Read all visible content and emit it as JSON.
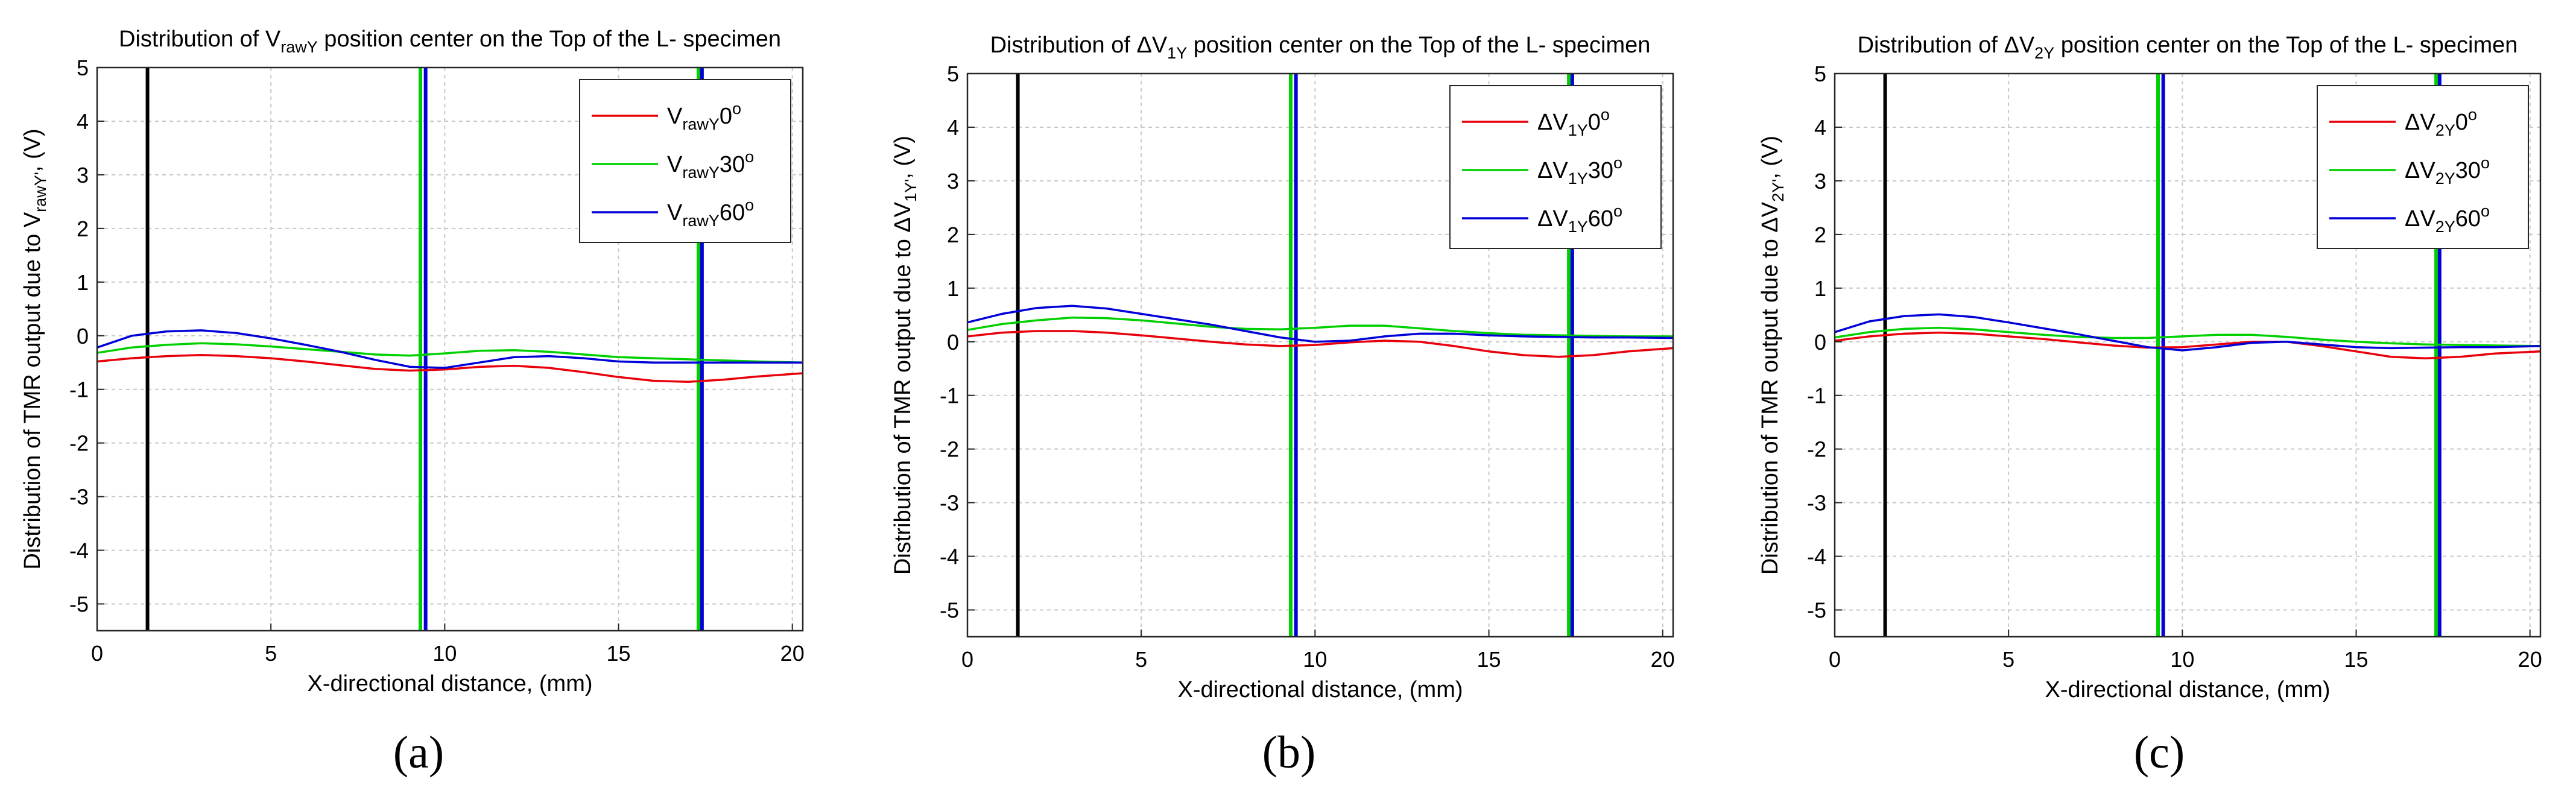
{
  "figure": {
    "panel_labels": [
      "(a)",
      "(b)",
      "(c)"
    ],
    "colors": {
      "red": "#e8000b",
      "green": "#00d000",
      "blue": "#0000d8",
      "black": "#000000",
      "grid": "#c8c8c8"
    }
  },
  "chart_data": [
    {
      "type": "line",
      "panel": "(a)",
      "title": {
        "prefix": "Distribution of V",
        "sub": "rawY",
        "suffix": " position center on the Top of the L- specimen"
      },
      "title_text": "Distribution of VrawY position center on the Top of the L- specimen",
      "xlabel": "X-directional distance, (mm)",
      "ylabel": {
        "prefix": "Distribution of TMR output due to V",
        "sub": "rawY'",
        "suffix": ", (V)"
      },
      "ylabel_text": "Distribution of TMR output due to VrawY', (V)",
      "xlim": [
        0,
        20.3
      ],
      "ylim": [
        -5.5,
        5
      ],
      "xticks": [
        0,
        5,
        10,
        15,
        20
      ],
      "yticks": [
        5,
        4,
        3,
        2,
        1,
        0,
        -1,
        -2,
        -3,
        -4,
        -5
      ],
      "grid": true,
      "legend_position": "top-right",
      "vlines": [
        {
          "x": 1.45,
          "color": "black"
        },
        {
          "x": 9.3,
          "color": "green"
        },
        {
          "x": 9.45,
          "color": "blue"
        },
        {
          "x": 17.3,
          "color": "green"
        },
        {
          "x": 17.4,
          "color": "blue"
        }
      ],
      "x": [
        0,
        1,
        2,
        3,
        4,
        5,
        6,
        7,
        8,
        9,
        10,
        11,
        12,
        13,
        14,
        15,
        16,
        17,
        18,
        19,
        20.3
      ],
      "series": [
        {
          "name": "VrawY0°",
          "label": {
            "base": "V",
            "sub": "rawY",
            "angle": "0",
            "sup": "o"
          },
          "color": "red",
          "values": [
            -0.48,
            -0.42,
            -0.38,
            -0.36,
            -0.38,
            -0.42,
            -0.48,
            -0.55,
            -0.62,
            -0.65,
            -0.63,
            -0.58,
            -0.56,
            -0.6,
            -0.68,
            -0.77,
            -0.84,
            -0.86,
            -0.82,
            -0.76,
            -0.7
          ]
        },
        {
          "name": "VrawY30°",
          "label": {
            "base": "V",
            "sub": "rawY",
            "angle": "30",
            "sup": "o"
          },
          "color": "green",
          "values": [
            -0.32,
            -0.22,
            -0.17,
            -0.14,
            -0.16,
            -0.2,
            -0.25,
            -0.3,
            -0.35,
            -0.37,
            -0.33,
            -0.28,
            -0.27,
            -0.3,
            -0.35,
            -0.4,
            -0.42,
            -0.44,
            -0.46,
            -0.48,
            -0.5
          ]
        },
        {
          "name": "VrawY60°",
          "label": {
            "base": "V",
            "sub": "rawY",
            "angle": "60",
            "sup": "o"
          },
          "color": "blue",
          "values": [
            -0.22,
            0.0,
            0.08,
            0.1,
            0.05,
            -0.05,
            -0.17,
            -0.3,
            -0.45,
            -0.58,
            -0.6,
            -0.5,
            -0.4,
            -0.38,
            -0.42,
            -0.48,
            -0.5,
            -0.5,
            -0.5,
            -0.5,
            -0.5
          ]
        }
      ]
    },
    {
      "type": "line",
      "panel": "(b)",
      "title": {
        "prefix": "Distribution of ΔV",
        "sub": "1Y",
        "suffix": " position center on the Top of the L- specimen"
      },
      "title_text": "Distribution of ΔV1Y position center on the Top of the L- specimen",
      "xlabel": "X-directional distance, (mm)",
      "ylabel": {
        "prefix": "Distribution of TMR output due to ΔV",
        "sub": "1Y'",
        "suffix": ", (V)"
      },
      "ylabel_text": "Distribution of TMR output due to ΔV1Y', (V)",
      "xlim": [
        0,
        20.3
      ],
      "ylim": [
        -5.5,
        5
      ],
      "xticks": [
        0,
        5,
        10,
        15,
        20
      ],
      "yticks": [
        5,
        4,
        3,
        2,
        1,
        0,
        -1,
        -2,
        -3,
        -4,
        -5
      ],
      "grid": true,
      "legend_position": "top-right",
      "vlines": [
        {
          "x": 1.45,
          "color": "black"
        },
        {
          "x": 9.3,
          "color": "green"
        },
        {
          "x": 9.45,
          "color": "blue"
        },
        {
          "x": 17.3,
          "color": "green"
        },
        {
          "x": 17.4,
          "color": "blue"
        }
      ],
      "x": [
        0,
        1,
        2,
        3,
        4,
        5,
        6,
        7,
        8,
        9,
        10,
        11,
        12,
        13,
        14,
        15,
        16,
        17,
        18,
        19,
        20.3
      ],
      "series": [
        {
          "name": "ΔV1Y0°",
          "label": {
            "base": "ΔV",
            "sub": "1Y",
            "angle": "0",
            "sup": "o"
          },
          "color": "red",
          "values": [
            0.1,
            0.17,
            0.2,
            0.2,
            0.17,
            0.12,
            0.06,
            0.0,
            -0.05,
            -0.08,
            -0.06,
            -0.01,
            0.02,
            0.0,
            -0.08,
            -0.18,
            -0.25,
            -0.28,
            -0.25,
            -0.18,
            -0.12
          ]
        },
        {
          "name": "ΔV1Y30°",
          "label": {
            "base": "ΔV",
            "sub": "1Y",
            "angle": "30",
            "sup": "o"
          },
          "color": "green",
          "values": [
            0.22,
            0.33,
            0.4,
            0.45,
            0.44,
            0.4,
            0.34,
            0.28,
            0.24,
            0.23,
            0.26,
            0.3,
            0.3,
            0.25,
            0.2,
            0.16,
            0.13,
            0.12,
            0.11,
            0.1,
            0.1
          ]
        },
        {
          "name": "ΔV1Y60°",
          "label": {
            "base": "ΔV",
            "sub": "1Y",
            "angle": "60",
            "sup": "o"
          },
          "color": "blue",
          "values": [
            0.36,
            0.52,
            0.63,
            0.67,
            0.62,
            0.52,
            0.42,
            0.32,
            0.2,
            0.08,
            0.0,
            0.02,
            0.1,
            0.15,
            0.15,
            0.12,
            0.1,
            0.09,
            0.08,
            0.08,
            0.07
          ]
        }
      ]
    },
    {
      "type": "line",
      "panel": "(c)",
      "title": {
        "prefix": "Distribution of ΔV",
        "sub": "2Y",
        "suffix": " position center on the Top of the L- specimen"
      },
      "title_text": "Distribution of ΔV2Y position center on the Top of the L- specimen",
      "xlabel": "X-directional distance, (mm)",
      "ylabel": {
        "prefix": "Distribution of TMR output due to ΔV",
        "sub": "2Y'",
        "suffix": ", (V)"
      },
      "ylabel_text": "Distribution of TMR output due to ΔV2Y', (V)",
      "xlim": [
        0,
        20.3
      ],
      "ylim": [
        -5.5,
        5
      ],
      "xticks": [
        0,
        5,
        10,
        15,
        20
      ],
      "yticks": [
        5,
        4,
        3,
        2,
        1,
        0,
        -1,
        -2,
        -3,
        -4,
        -5
      ],
      "grid": true,
      "legend_position": "top-right",
      "vlines": [
        {
          "x": 1.45,
          "color": "black"
        },
        {
          "x": 9.3,
          "color": "green"
        },
        {
          "x": 9.45,
          "color": "blue"
        },
        {
          "x": 17.3,
          "color": "green"
        },
        {
          "x": 17.4,
          "color": "blue"
        }
      ],
      "x": [
        0,
        1,
        2,
        3,
        4,
        5,
        6,
        7,
        8,
        9,
        10,
        11,
        12,
        13,
        14,
        15,
        16,
        17,
        18,
        19,
        20.3
      ],
      "series": [
        {
          "name": "ΔV2Y0°",
          "label": {
            "base": "ΔV",
            "sub": "2Y",
            "angle": "0",
            "sup": "o"
          },
          "color": "red",
          "values": [
            0.02,
            0.1,
            0.15,
            0.17,
            0.15,
            0.1,
            0.05,
            -0.01,
            -0.07,
            -0.11,
            -0.1,
            -0.05,
            0.0,
            0.0,
            -0.08,
            -0.18,
            -0.28,
            -0.31,
            -0.28,
            -0.22,
            -0.18
          ]
        },
        {
          "name": "ΔV2Y30°",
          "label": {
            "base": "ΔV",
            "sub": "2Y",
            "angle": "30",
            "sup": "o"
          },
          "color": "green",
          "values": [
            0.08,
            0.18,
            0.24,
            0.26,
            0.23,
            0.18,
            0.13,
            0.09,
            0.07,
            0.07,
            0.1,
            0.13,
            0.13,
            0.09,
            0.04,
            0.0,
            -0.03,
            -0.05,
            -0.06,
            -0.07,
            -0.08
          ]
        },
        {
          "name": "ΔV2Y60°",
          "label": {
            "base": "ΔV",
            "sub": "2Y",
            "angle": "60",
            "sup": "o"
          },
          "color": "blue",
          "values": [
            0.18,
            0.38,
            0.48,
            0.51,
            0.46,
            0.36,
            0.25,
            0.14,
            0.02,
            -0.1,
            -0.16,
            -0.1,
            -0.02,
            0.0,
            -0.05,
            -0.1,
            -0.12,
            -0.11,
            -0.1,
            -0.1,
            -0.08
          ]
        }
      ]
    }
  ]
}
